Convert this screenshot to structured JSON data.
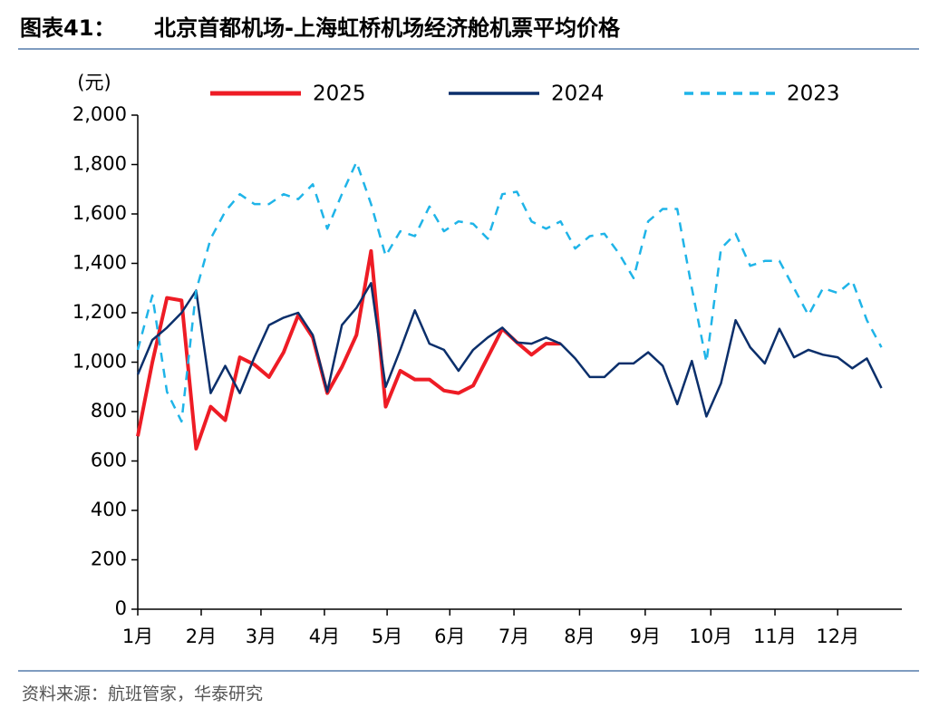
{
  "chart_data": {
    "type": "line",
    "label": "图表41：",
    "title": "北京首都机场-上海虹桥机场经济舱机票平均价格",
    "y_label": "(元)",
    "source": "资料来源：航班管家，华泰研究",
    "x": [
      0,
      1,
      2,
      3,
      4,
      5,
      6,
      7,
      8,
      9,
      10,
      11,
      12,
      13,
      14,
      15,
      16,
      17,
      18,
      19,
      20,
      21,
      22,
      23,
      24,
      25,
      26,
      27,
      28,
      29,
      30,
      31,
      32,
      33,
      34,
      35,
      36,
      37,
      38,
      39,
      40,
      41,
      42,
      43,
      44,
      45,
      46,
      47,
      48,
      49,
      50,
      51
    ],
    "xlim": [
      0,
      52.4
    ],
    "xticks": [
      {
        "value": 0,
        "label": "1月"
      },
      {
        "value": 4.35,
        "label": "2月"
      },
      {
        "value": 8.45,
        "label": "3月"
      },
      {
        "value": 12.8,
        "label": "4月"
      },
      {
        "value": 17.1,
        "label": "5月"
      },
      {
        "value": 21.4,
        "label": "6月"
      },
      {
        "value": 25.8,
        "label": "7月"
      },
      {
        "value": 30.3,
        "label": "8月"
      },
      {
        "value": 34.8,
        "label": "9月"
      },
      {
        "value": 39.3,
        "label": "10月"
      },
      {
        "value": 43.7,
        "label": "11月"
      },
      {
        "value": 48.0,
        "label": "12月"
      }
    ],
    "ylim": [
      0,
      2000
    ],
    "yticks": [
      0,
      200,
      400,
      600,
      800,
      {
        "value": 1000,
        "label": "1,000"
      },
      {
        "value": 1200,
        "label": "1,200"
      },
      {
        "value": 1400,
        "label": "1,400"
      },
      {
        "value": 1600,
        "label": "1,600"
      },
      {
        "value": 1800,
        "label": "1,800"
      },
      {
        "value": 2000,
        "label": "2,000"
      }
    ],
    "series": [
      {
        "name": "2025",
        "color": "#ee1c25",
        "dash": false,
        "width": 4,
        "values": [
          700,
          1000,
          1260,
          1250,
          650,
          820,
          765,
          1020,
          990,
          940,
          1040,
          1190,
          1100,
          875,
          980,
          1110,
          1450,
          820,
          965,
          930,
          930,
          885,
          875,
          905,
          1020,
          1135,
          1080,
          1030,
          1075,
          1075,
          null,
          null,
          null,
          null,
          null,
          null,
          null,
          null,
          null,
          null,
          null,
          null,
          null,
          null,
          null,
          null,
          null,
          null,
          null,
          null,
          null,
          null
        ]
      },
      {
        "name": "2024",
        "color": "#0b2f6b",
        "dash": false,
        "width": 2.5,
        "values": [
          950,
          1090,
          1140,
          1200,
          1290,
          875,
          985,
          875,
          1020,
          1150,
          1180,
          1200,
          1110,
          880,
          1150,
          1220,
          1320,
          900,
          1050,
          1210,
          1075,
          1050,
          965,
          1050,
          1100,
          1140,
          1080,
          1075,
          1100,
          1075,
          1015,
          940,
          940,
          995,
          995,
          1040,
          985,
          830,
          1005,
          780,
          915,
          1170,
          1060,
          995,
          1135,
          1020,
          1050,
          1030,
          1020,
          975,
          1015,
          895
        ]
      },
      {
        "name": "2023",
        "color": "#1fb4e8",
        "dash": true,
        "width": 2.5,
        "values": [
          1050,
          1270,
          880,
          760,
          1290,
          1500,
          1610,
          1680,
          1640,
          1640,
          1680,
          1660,
          1720,
          1540,
          1680,
          1810,
          1640,
          1430,
          1530,
          1510,
          1630,
          1530,
          1570,
          1560,
          1500,
          1680,
          1690,
          1570,
          1540,
          1570,
          1460,
          1510,
          1520,
          1440,
          1340,
          1570,
          1620,
          1620,
          1300,
          1000,
          1460,
          1520,
          1390,
          1410,
          1410,
          1300,
          1190,
          1300,
          1280,
          1330,
          1170,
          1060
        ]
      }
    ]
  }
}
